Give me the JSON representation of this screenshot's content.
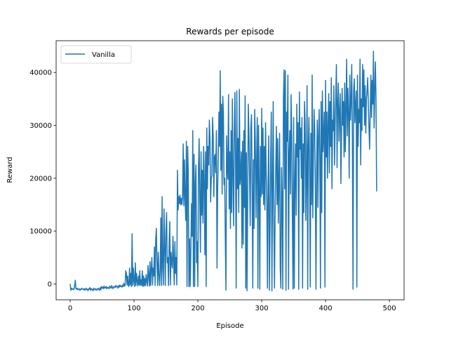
{
  "chart_data": {
    "type": "line",
    "title": "Rewards per episode",
    "xlabel": "Episode",
    "ylabel": "Reward",
    "xlim": [
      -22,
      523
    ],
    "ylim": [
      -3000,
      46000
    ],
    "xticks": [
      0,
      100,
      200,
      300,
      400,
      500
    ],
    "yticks": [
      0,
      10000,
      20000,
      30000,
      40000
    ],
    "grid": false,
    "legend_position": "top-left",
    "series": [
      {
        "name": "Vanilla",
        "color": "#1f77b4",
        "x_start": 0,
        "x_step": 1,
        "values": [
          0,
          -1200,
          -800,
          -1000,
          -900,
          -1100,
          -1000,
          -300,
          700,
          -900,
          -1000,
          -800,
          -1100,
          -1000,
          -900,
          -1200,
          -1000,
          -1100,
          -800,
          -900,
          -1000,
          -1100,
          -900,
          -1200,
          -1000,
          -800,
          -1100,
          -1000,
          -1300,
          -900,
          -1000,
          -700,
          -1200,
          -900,
          -1100,
          -1000,
          -1300,
          -800,
          -1000,
          -1100,
          -900,
          -1200,
          -1000,
          -1100,
          -800,
          -1000,
          -1200,
          -700,
          -1100,
          -500,
          -800,
          -600,
          -900,
          -400,
          -800,
          -700,
          -500,
          -900,
          -600,
          -800,
          -700,
          -900,
          -400,
          -600,
          -800,
          -300,
          -700,
          -900,
          -500,
          -600,
          -700,
          -300,
          -600,
          -400,
          -500,
          -800,
          -300,
          -600,
          -200,
          -500,
          -400,
          -600,
          -200,
          -500,
          100,
          -400,
          -300,
          2500,
          2000,
          -200,
          1500,
          -300,
          -500,
          3000,
          -200,
          2000,
          -500,
          9500,
          -300,
          3000,
          500,
          -500,
          4000,
          -300,
          2000,
          500,
          -400,
          1500,
          -200,
          2500,
          -300,
          800,
          -300,
          2500,
          -500,
          1500,
          -400,
          1000,
          -300,
          1800,
          500,
          -400,
          3500,
          1500,
          -400,
          4200,
          -300,
          2800,
          5000,
          -200,
          3000,
          1500,
          7000,
          -300,
          8500,
          10500,
          4000,
          -300,
          6000,
          2000,
          -300,
          2500,
          12500,
          -300,
          16500,
          3000,
          -200,
          14200,
          7000,
          -300,
          10000,
          13500,
          4000,
          5000,
          -300,
          7500,
          11800,
          -200,
          6000,
          4000,
          3000,
          9000,
          4500,
          -200,
          8000,
          2000,
          5000,
          -200,
          21500,
          14000,
          16500,
          15200,
          16800,
          15000,
          16200,
          15000,
          16500,
          26500,
          14800,
          23500,
          16000,
          12000,
          27000,
          -500,
          26000,
          21000,
          -500,
          8500,
          -500,
          6200,
          15200,
          9000,
          29000,
          -500,
          24500,
          -500,
          19000,
          22500,
          4000,
          8000,
          -500,
          22000,
          27500,
          16000,
          6000,
          25000,
          13000,
          21500,
          11500,
          26000,
          19500,
          5500,
          25000,
          -500,
          29500,
          18000,
          26000,
          22500,
          31000,
          27500,
          15500,
          20000,
          20500,
          31500,
          28000,
          16500,
          24000,
          24500,
          21000,
          29000,
          3000,
          18000,
          24500,
          32500,
          26000,
          40300,
          21500,
          34000,
          17000,
          35500,
          32500,
          18800,
          20000,
          8500,
          -1200,
          28000,
          22000,
          19800,
          35800,
          14200,
          25000,
          10500,
          29000,
          13500,
          35000,
          20500,
          11000,
          28000,
          36200,
          24500,
          -800,
          36500,
          18000,
          27500,
          13500,
          36800,
          18800,
          20500,
          25000,
          6800,
          27000,
          7500,
          29000,
          14500,
          35600,
          -800,
          24800,
          -1300,
          15500,
          34000,
          28500,
          20000,
          11000,
          29500,
          32000,
          18000,
          -800,
          23500,
          10500,
          33000,
          27000,
          12500,
          23000,
          31500,
          -800,
          30000,
          18500,
          -1000,
          26000,
          16500,
          33200,
          17000,
          29500,
          15000,
          26000,
          14000,
          30500,
          21000,
          15500,
          -800,
          19000,
          28000,
          -1200,
          10500,
          24000,
          32500,
          -1300,
          18500,
          34500,
          11500,
          -800,
          13500,
          22000,
          29800,
          15000,
          27500,
          11500,
          20000,
          28500,
          3000,
          -800,
          22000,
          16000,
          -1000,
          35000,
          40500,
          18000,
          40300,
          -1200,
          32500,
          27000,
          39500,
          -1000,
          24500,
          29000,
          17000,
          35800,
          28000,
          12500,
          -1000,
          31500,
          -800,
          19500,
          26500,
          13000,
          34000,
          24000,
          30500,
          -1000,
          36300,
          25500,
          29500,
          20000,
          31500,
          -800,
          26500,
          13500,
          34500,
          30500,
          12000,
          20000,
          37500,
          -1000,
          26000,
          31500,
          21500,
          -600,
          28500,
          15000,
          39500,
          12500,
          24500,
          33000,
          29000,
          17500,
          -1000,
          21500,
          31000,
          14500,
          28000,
          33000,
          24000,
          -800,
          34500,
          13500,
          36500,
          25000,
          28500,
          32500,
          -600,
          38500,
          24000,
          32500,
          20000,
          30500,
          36000,
          21000,
          34500,
          26000,
          39000,
          18000,
          31000,
          29000,
          37500,
          22500,
          30000,
          35500,
          41500,
          22000,
          34000,
          38000,
          27000,
          32500,
          36000,
          19000,
          28500,
          37000,
          30000,
          34500,
          24000,
          38000,
          25000,
          33000,
          42500,
          28000,
          37000,
          32500,
          20000,
          39500,
          31000,
          34500,
          41500,
          27500,
          -1000,
          36500,
          38800,
          30500,
          34000,
          36500,
          -600,
          39500,
          26000,
          33000,
          30500,
          42500,
          22500,
          35000,
          29000,
          41500,
          33500,
          40500,
          30000,
          37500,
          28500,
          35000,
          36500,
          39000,
          34000,
          29500,
          25500,
          33000,
          39500,
          31500,
          38500,
          34000,
          44000,
          29500,
          36500,
          42000,
          35000,
          17500
        ]
      }
    ]
  }
}
